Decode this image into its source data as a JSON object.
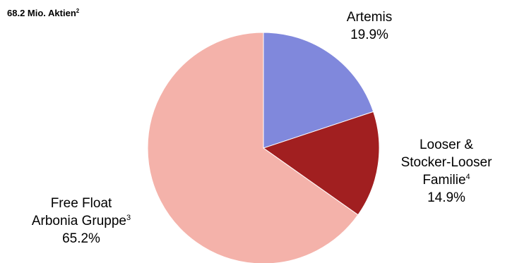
{
  "chart_data": {
    "type": "pie",
    "title": "68.2 Mio. Aktien",
    "title_sup": "2",
    "slices": [
      {
        "label_lines": [
          "Artemis"
        ],
        "sup": "",
        "value_label": "19.9%",
        "value": 19.9,
        "color": "#8088dc"
      },
      {
        "label_lines": [
          "Looser &",
          "Stocker-Looser",
          "Familie"
        ],
        "sup": "4",
        "value_label": "14.9%",
        "value": 14.9,
        "color": "#a11f20"
      },
      {
        "label_lines": [
          "Free Float",
          "Arbonia Gruppe"
        ],
        "sup": "3",
        "value_label": "65.2%",
        "value": 65.2,
        "color": "#f4b2aa"
      }
    ],
    "start_angle": "12 o'clock",
    "direction": "clockwise"
  }
}
